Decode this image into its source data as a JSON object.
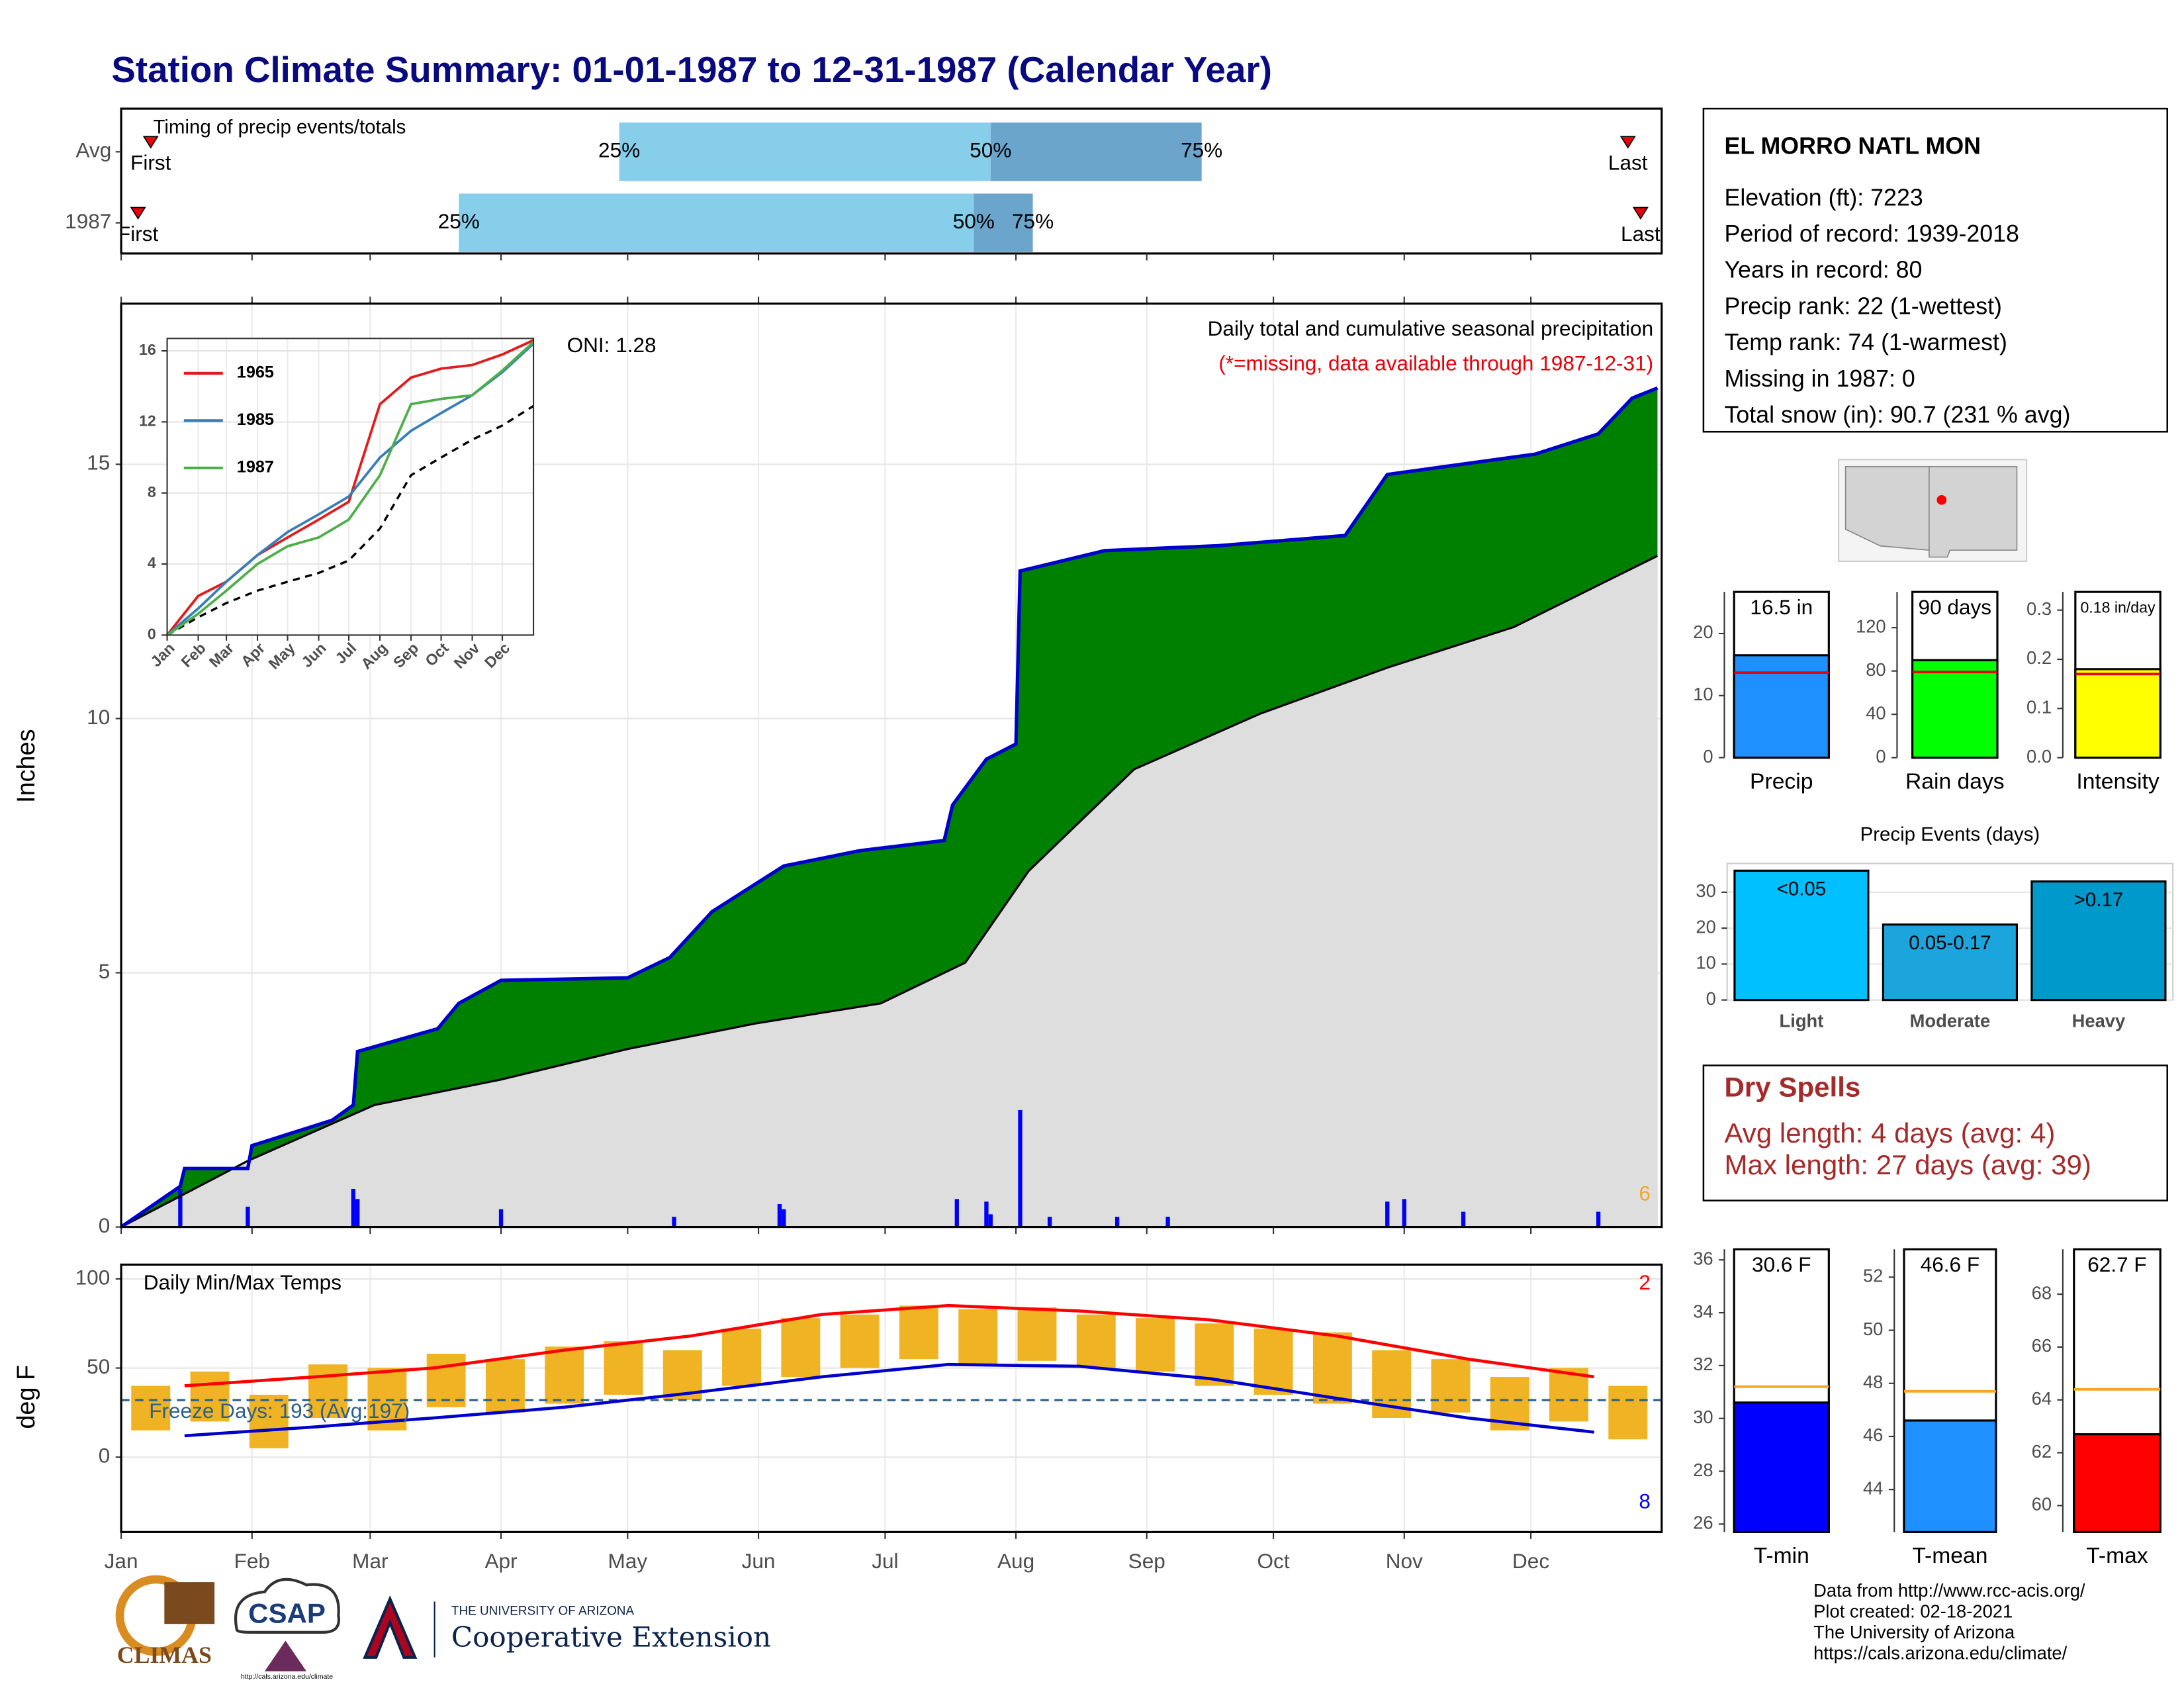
{
  "title": "Station Climate Summary: 01-01-1987 to 12-31-1987 (Calendar Year)",
  "station": {
    "name": "EL MORRO NATL MON",
    "lines": [
      "Elevation (ft): 7223",
      "Period of record: 1939-2018",
      "Years in record: 80",
      "Precip rank: 22 (1-wettest)",
      "Temp rank: 74 (1-warmest)",
      "Missing in 1987: 0",
      "Total snow (in): 90.7 (231 % avg)"
    ]
  },
  "dry_spells": {
    "title": "Dry Spells",
    "lines": [
      "Avg length: 4 days (avg: 4)",
      "Max length: 27 days (avg: 39)"
    ]
  },
  "footer": [
    "Data from http://www.rcc-acis.org/",
    "Plot created: 02-18-2021",
    "The University of Arizona",
    "https://cals.arizona.edu/climate/"
  ],
  "logos": {
    "climas": "CLIMAS",
    "csap": "CSAP",
    "csap_url": "http://cals.arizona.edu/climate",
    "university": "THE UNIVERSITY OF ARIZONA",
    "extension": "Cooperative Extension"
  },
  "chart_data": [
    {
      "type": "timeline",
      "title": "Timing of precip events/totals",
      "categories": [
        "Avg",
        "1987"
      ],
      "first": [
        7,
        4
      ],
      "q25": [
        118,
        80
      ],
      "q50": [
        206,
        202
      ],
      "q75": [
        256,
        216
      ],
      "last": [
        357,
        360
      ],
      "marker_labels": [
        "First",
        "Last"
      ],
      "quantile_labels": [
        "25%",
        "50%",
        "75%"
      ],
      "colors": [
        "#87ceeb",
        "#6ba5cc"
      ],
      "marker_color": "#e8000b",
      "xlim": [
        0,
        365
      ],
      "xticks": [
        0,
        31,
        59,
        90,
        120,
        151,
        181,
        212,
        243,
        273,
        304,
        334
      ]
    },
    {
      "type": "cumulative",
      "title": "Daily total and cumulative seasonal precipitation",
      "subtitle": "(*=missing, data available through 1987-12-31)",
      "annotation": "ONI: 1.28",
      "ylabel": "Inches",
      "corner_value": 6,
      "xlim": [
        0,
        365
      ],
      "ylim": [
        0,
        18.16
      ],
      "yticks": [
        0,
        5,
        10,
        15
      ],
      "xticks": [
        0,
        31,
        59,
        90,
        120,
        151,
        181,
        212,
        243,
        273,
        304,
        334
      ],
      "grid": true,
      "observed": {
        "color": "#008000",
        "line_color": "#0000cd",
        "x": [
          0,
          14,
          15,
          30,
          31,
          50,
          55,
          56,
          75,
          80,
          90,
          120,
          130,
          140,
          157,
          175,
          195,
          197,
          205,
          212,
          213,
          233,
          260,
          290,
          300,
          335,
          350,
          358,
          364
        ],
        "values": [
          0,
          0.8,
          1.15,
          1.15,
          1.6,
          2.1,
          2.4,
          3.45,
          3.9,
          4.4,
          4.85,
          4.9,
          5.3,
          6.2,
          7.1,
          7.4,
          7.6,
          8.3,
          9.2,
          9.5,
          12.9,
          13.3,
          13.4,
          13.6,
          14.8,
          15.2,
          15.6,
          16.3,
          16.5
        ]
      },
      "average": {
        "color": "#dedede",
        "line_color": "#000000",
        "x": [
          0,
          30,
          60,
          90,
          120,
          150,
          180,
          200,
          215,
          240,
          270,
          300,
          330,
          364
        ],
        "values": [
          0,
          1.3,
          2.4,
          2.9,
          3.5,
          4.0,
          4.4,
          5.2,
          7.0,
          9.0,
          10.1,
          11.0,
          11.8,
          13.2
        ]
      },
      "daily": {
        "color": "#0000ff",
        "x": [
          14,
          30,
          55,
          56,
          90,
          131,
          156,
          157,
          198,
          205,
          206,
          213,
          220,
          236,
          248,
          300,
          304,
          318,
          350
        ],
        "values": [
          0.75,
          0.4,
          0.75,
          0.55,
          0.35,
          0.2,
          0.45,
          0.35,
          0.55,
          0.5,
          0.25,
          2.3,
          0.2,
          0.2,
          0.2,
          0.5,
          0.55,
          0.3,
          0.3
        ]
      }
    },
    {
      "type": "line",
      "xlim": [
        0,
        365
      ],
      "ylim": [
        0,
        16.7
      ],
      "yticks": [
        0,
        4,
        8,
        12,
        16
      ],
      "xticks": [
        {
          "value": 0,
          "label": "Jan"
        },
        {
          "value": 31,
          "label": "Feb"
        },
        {
          "value": 59,
          "label": "Mar"
        },
        {
          "value": 90,
          "label": "Apr"
        },
        {
          "value": 120,
          "label": "May"
        },
        {
          "value": 151,
          "label": "Jun"
        },
        {
          "value": 181,
          "label": "Jul"
        },
        {
          "value": 212,
          "label": "Aug"
        },
        {
          "value": 243,
          "label": "Sep"
        },
        {
          "value": 273,
          "label": "Oct"
        },
        {
          "value": 304,
          "label": "Nov"
        },
        {
          "value": 334,
          "label": "Dec"
        }
      ],
      "series": [
        {
          "name": "1965",
          "color": "#e41a1c",
          "x": [
            0,
            31,
            59,
            90,
            120,
            151,
            181,
            212,
            243,
            273,
            304,
            334,
            365
          ],
          "values": [
            0,
            2.2,
            3,
            4.5,
            5.5,
            6.5,
            7.5,
            13,
            14.5,
            15,
            15.2,
            15.8,
            16.6
          ]
        },
        {
          "name": "1985",
          "color": "#377eb8",
          "x": [
            0,
            31,
            59,
            90,
            120,
            151,
            181,
            212,
            243,
            273,
            304,
            334,
            365
          ],
          "values": [
            0,
            1.5,
            3,
            4.5,
            5.8,
            6.8,
            7.8,
            10,
            11.5,
            12.5,
            13.5,
            14.8,
            16.4
          ]
        },
        {
          "name": "1987",
          "color": "#4daf4a",
          "x": [
            0,
            31,
            59,
            90,
            120,
            151,
            181,
            212,
            243,
            273,
            304,
            334,
            365
          ],
          "values": [
            0,
            1.2,
            2.5,
            4,
            5,
            5.5,
            6.5,
            9,
            13,
            13.3,
            13.5,
            14.9,
            16.5
          ]
        }
      ],
      "average": {
        "color": "#000000",
        "x": [
          0,
          31,
          59,
          90,
          120,
          151,
          181,
          212,
          243,
          273,
          304,
          334,
          365
        ],
        "values": [
          0,
          1,
          1.8,
          2.5,
          3,
          3.5,
          4.2,
          6,
          9,
          10,
          11,
          11.8,
          12.9
        ]
      }
    },
    {
      "type": "temperature",
      "title": "Daily Min/Max Temps",
      "annotation": "Freeze Days: 193 (Avg:197)",
      "ylabel": "deg F",
      "record_high_count": 2,
      "record_low_count": 8,
      "freeze_line": 32,
      "freeze_color": "#2b5f8a",
      "xlim": [
        0,
        365
      ],
      "ylim": [
        -42,
        108
      ],
      "yticks": [
        0,
        50,
        100
      ],
      "grid": true,
      "xticks": [
        {
          "value": 0,
          "label": "Jan"
        },
        {
          "value": 31,
          "label": "Feb"
        },
        {
          "value": 59,
          "label": "Mar"
        },
        {
          "value": 90,
          "label": "Apr"
        },
        {
          "value": 120,
          "label": "May"
        },
        {
          "value": 151,
          "label": "Jun"
        },
        {
          "value": 181,
          "label": "Jul"
        },
        {
          "value": 212,
          "label": "Aug"
        },
        {
          "value": 243,
          "label": "Sep"
        },
        {
          "value": 273,
          "label": "Oct"
        },
        {
          "value": 304,
          "label": "Nov"
        },
        {
          "value": 334,
          "label": "Dec"
        }
      ],
      "daily": {
        "color": "#f0b323",
        "x": [
          7,
          21,
          35,
          49,
          63,
          77,
          91,
          105,
          119,
          133,
          147,
          161,
          175,
          189,
          203,
          217,
          231,
          245,
          259,
          273,
          287,
          301,
          315,
          329,
          343,
          357
        ],
        "max": [
          40,
          48,
          35,
          52,
          50,
          58,
          55,
          62,
          65,
          60,
          72,
          78,
          80,
          85,
          83,
          84,
          80,
          78,
          75,
          72,
          70,
          60,
          55,
          45,
          50,
          40
        ],
        "min": [
          15,
          20,
          5,
          22,
          15,
          28,
          25,
          30,
          35,
          32,
          40,
          45,
          50,
          55,
          52,
          54,
          50,
          48,
          40,
          35,
          30,
          22,
          25,
          15,
          20,
          10
        ]
      },
      "avg_max": {
        "color": "#ff0000",
        "x": [
          15,
          46,
          74,
          105,
          135,
          166,
          196,
          227,
          258,
          288,
          319,
          349
        ],
        "values": [
          40,
          45,
          50,
          60,
          68,
          80,
          85,
          82,
          77,
          68,
          55,
          45
        ]
      },
      "avg_min": {
        "color": "#0000cd",
        "x": [
          15,
          46,
          74,
          105,
          135,
          166,
          196,
          227,
          258,
          288,
          319,
          349
        ],
        "values": [
          12,
          17,
          22,
          28,
          36,
          45,
          52,
          51,
          44,
          33,
          22,
          14
        ]
      }
    },
    {
      "type": "bar",
      "categories": [
        "Precip"
      ],
      "values": [
        16.5
      ],
      "value_labels": [
        "16.5 in"
      ],
      "average": 13.7,
      "color": "#1e90ff",
      "average_color": "#e8000b",
      "ylim": [
        0,
        26.7
      ],
      "yticks": [
        0,
        10,
        20
      ]
    },
    {
      "type": "bar",
      "categories": [
        "Rain days"
      ],
      "values": [
        90
      ],
      "value_labels": [
        "90 days"
      ],
      "average": 79,
      "color": "#00ff00",
      "average_color": "#e8000b",
      "ylim": [
        0,
        153
      ],
      "yticks": [
        0,
        40,
        80,
        120
      ]
    },
    {
      "type": "bar",
      "categories": [
        "Intensity"
      ],
      "values": [
        0.18
      ],
      "value_labels": [
        "0.18 in/day"
      ],
      "average": 0.17,
      "color": "#ffff00",
      "average_color": "#e8000b",
      "ylim": [
        0,
        0.337
      ],
      "yticks": [
        {
          "value": 0,
          "label": "0.0"
        },
        0.1,
        0.2,
        0.3
      ]
    },
    {
      "type": "bar",
      "title": "Precip Events (days)",
      "categories": [
        "Light",
        "Moderate",
        "Heavy"
      ],
      "values": [
        36,
        21,
        33
      ],
      "bin_labels": [
        "<0.05",
        "0.05-0.17",
        ">0.17"
      ],
      "colors": [
        "#00bfff",
        "#1ca5dc",
        "#0099cc"
      ],
      "ylim": [
        0,
        38
      ],
      "yticks": [
        0,
        10,
        20,
        30
      ],
      "grid": true
    },
    {
      "type": "bar",
      "categories": [
        "T-min"
      ],
      "values": [
        30.6
      ],
      "value_labels": [
        "30.6 F"
      ],
      "average": 31.2,
      "color": "#0000ff",
      "average_color": "#f5a623",
      "ylim": [
        25.7,
        36.4
      ],
      "yticks": [
        26,
        28,
        30,
        32,
        34,
        36
      ]
    },
    {
      "type": "bar",
      "categories": [
        "T-mean"
      ],
      "values": [
        46.6
      ],
      "value_labels": [
        "46.6 F"
      ],
      "average": 47.7,
      "color": "#1e90ff",
      "average_color": "#f5a623",
      "ylim": [
        42.4,
        53.05
      ],
      "yticks": [
        44,
        46,
        48,
        50,
        52
      ]
    },
    {
      "type": "bar",
      "categories": [
        "T-max"
      ],
      "values": [
        62.7
      ],
      "value_labels": [
        "62.7 F"
      ],
      "average": 64.4,
      "color": "#ff0000",
      "average_color": "#f5a623",
      "ylim": [
        59,
        69.7
      ],
      "yticks": [
        60,
        62,
        64,
        66,
        68
      ]
    }
  ]
}
